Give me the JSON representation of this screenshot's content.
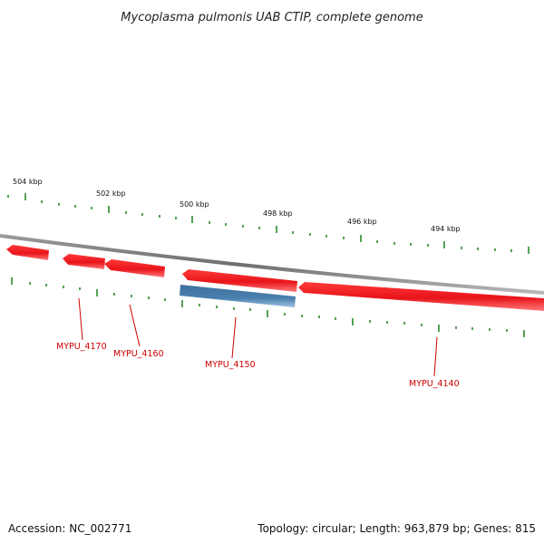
{
  "title": "Mycoplasma pulmonis UAB CTIP, complete genome",
  "footer": {
    "accession": "Accession: NC_002771",
    "summary": "Topology: circular; Length: 963,879 bp; Genes: 815"
  },
  "colors": {
    "backbone": "#808080",
    "forward_gene": "#e8141a",
    "reverse_gene": "#4a7fae",
    "tick": "#2a8a2a",
    "label": "#cc0000"
  },
  "scale_labels": [
    "504 kbp",
    "502 kbp",
    "500 kbp",
    "498 kbp",
    "496 kbp",
    "494 kbp"
  ],
  "genes": [
    {
      "label": "MYPU_4170",
      "strand": "forward"
    },
    {
      "label": "MYPU_4160",
      "strand": "forward"
    },
    {
      "label": "MYPU_4150",
      "strand": "reverse"
    },
    {
      "label": "MYPU_4140",
      "strand": "forward"
    }
  ]
}
